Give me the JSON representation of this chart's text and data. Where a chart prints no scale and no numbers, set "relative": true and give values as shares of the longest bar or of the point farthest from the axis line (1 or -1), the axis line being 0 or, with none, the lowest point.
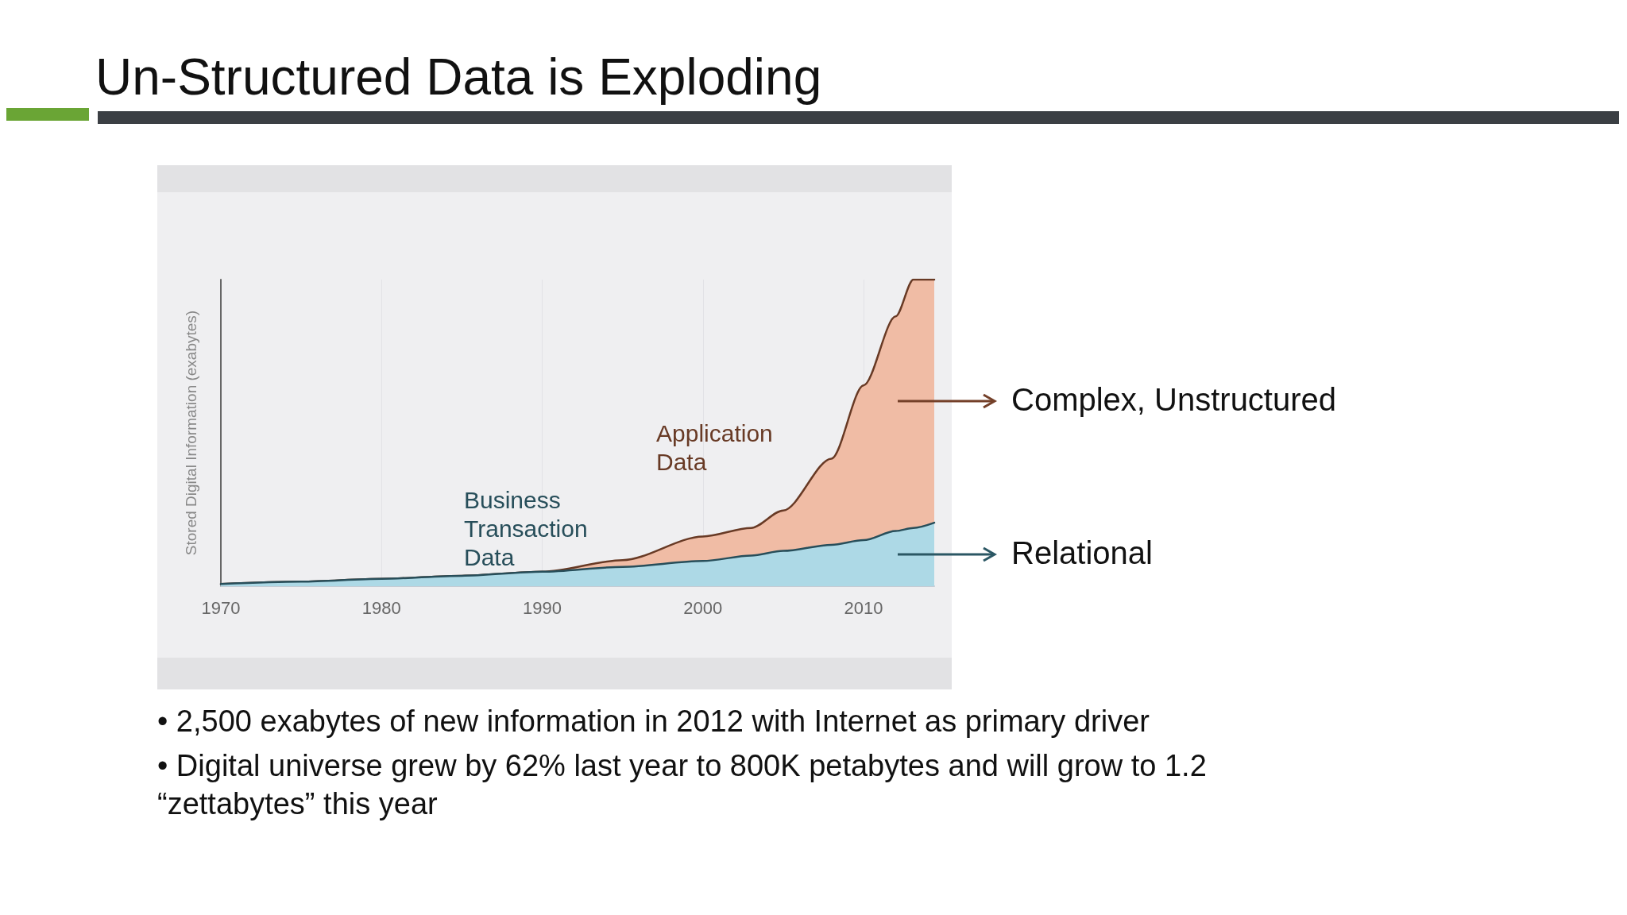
{
  "chart_data": {
    "type": "area",
    "title": "Un-Structured  Data is Exploding",
    "ylabel": "Stored Digital Information (exabytes)",
    "relative": true,
    "stacked": true,
    "grid": "x",
    "legend": "right",
    "x": [
      1970,
      1975,
      1980,
      1985,
      1990,
      1995,
      2000,
      2003,
      2005,
      2008,
      2010,
      2012,
      2013.1,
      2014.4
    ],
    "xlim": [
      1970,
      2014.4
    ],
    "xticks": [
      1970,
      1980,
      1990,
      2000,
      2010
    ],
    "series": [
      {
        "name": "Relational",
        "color": "#add9e6",
        "values": [
          0.007,
          0.015,
          0.024,
          0.034,
          0.047,
          0.063,
          0.082,
          0.1,
          0.115,
          0.135,
          0.15,
          0.18,
          0.19,
          0.207
        ]
      },
      {
        "name": "Complex, Unstructured",
        "color": "#f0bca5",
        "values": [
          0,
          0,
          0,
          0,
          0,
          0.022,
          0.08,
          0.09,
          0.132,
          0.281,
          0.505,
          0.7,
          0.81,
          0.793
        ]
      }
    ],
    "annotations": [
      "Business Transaction Data",
      "Application Data",
      "• 2,500 exabytes of new information in 2012 with Internet as primary driver",
      "• Digital universe grew by 62% last year to 800K petabytes and will grow to 1.2 “zettabytes” this year"
    ]
  }
}
